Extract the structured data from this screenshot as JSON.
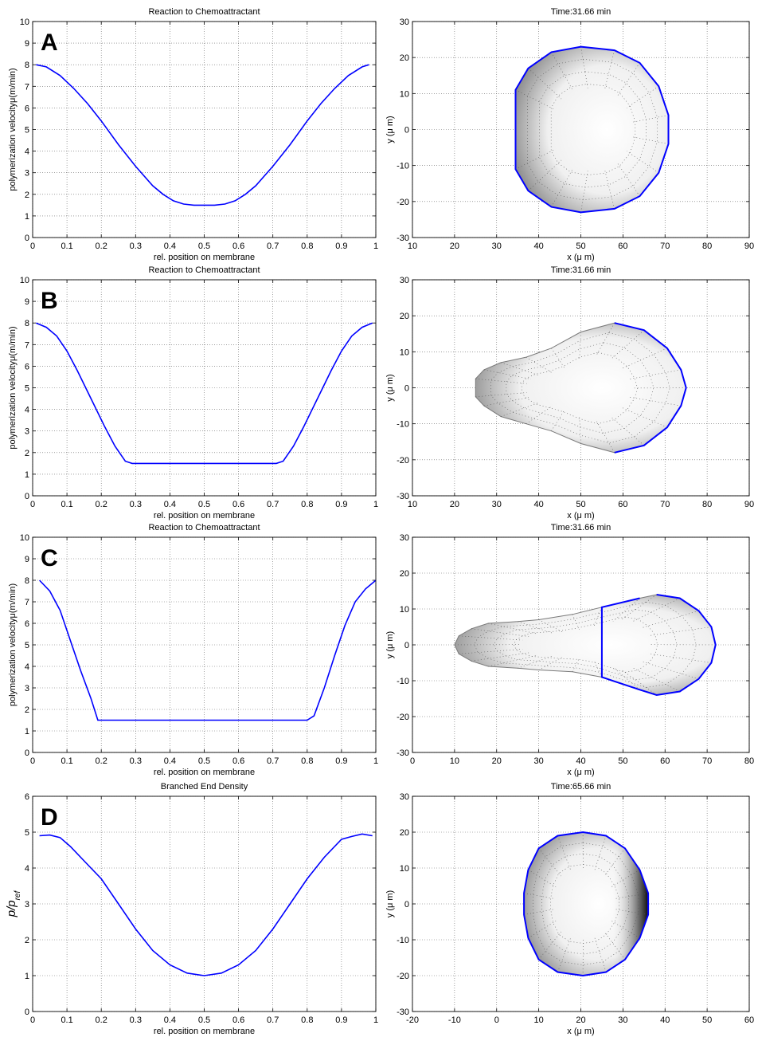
{
  "chart_data": [
    {
      "panel_letter": "A",
      "type": "line",
      "title": "Reaction to Chemoattractant",
      "xlabel": "rel. position on membrane",
      "ylabel": "polymerization velocityμ(m/min)",
      "xlim": [
        0,
        1
      ],
      "ylim": [
        0,
        10
      ],
      "xticks": [
        0,
        0.1,
        0.2,
        0.3,
        0.4,
        0.5,
        0.6,
        0.7,
        0.8,
        0.9,
        1
      ],
      "yticks": [
        0,
        1,
        2,
        3,
        4,
        5,
        6,
        7,
        8,
        9,
        10
      ],
      "grid": true,
      "line_color": "#0000ff",
      "x": [
        0.01,
        0.04,
        0.08,
        0.12,
        0.16,
        0.2,
        0.25,
        0.3,
        0.35,
        0.38,
        0.41,
        0.44,
        0.47,
        0.5,
        0.53,
        0.56,
        0.59,
        0.62,
        0.65,
        0.7,
        0.75,
        0.8,
        0.84,
        0.88,
        0.92,
        0.96,
        0.98
      ],
      "y": [
        8.0,
        7.9,
        7.5,
        6.9,
        6.2,
        5.4,
        4.3,
        3.3,
        2.4,
        2.0,
        1.7,
        1.55,
        1.5,
        1.5,
        1.5,
        1.55,
        1.7,
        2.0,
        2.4,
        3.3,
        4.3,
        5.4,
        6.2,
        6.9,
        7.5,
        7.9,
        8.0
      ]
    },
    {
      "type": "scatter",
      "title": "Time:31.66 min",
      "xlabel": "x (μ m)",
      "ylabel": "y (μ m)",
      "xlim": [
        10,
        90
      ],
      "ylim": [
        -30,
        30
      ],
      "xticks": [
        10,
        20,
        30,
        40,
        50,
        60,
        70,
        80,
        90
      ],
      "yticks": [
        -30,
        -20,
        -10,
        0,
        10,
        20,
        30
      ],
      "grid": true,
      "shape_outline": [
        [
          50,
          23
        ],
        [
          58,
          22
        ],
        [
          64,
          18.5
        ],
        [
          68.5,
          12
        ],
        [
          70.8,
          4
        ],
        [
          70.8,
          -4
        ],
        [
          68.5,
          -12
        ],
        [
          64,
          -18.5
        ],
        [
          58,
          -22
        ],
        [
          50,
          -23
        ],
        [
          43,
          -21.5
        ],
        [
          37.5,
          -17
        ],
        [
          34.5,
          -11
        ],
        [
          34.5,
          11
        ],
        [
          37.5,
          17
        ],
        [
          43,
          21.5
        ]
      ],
      "blue_edge": "all",
      "dark_side": "none"
    },
    {
      "panel_letter": "B",
      "type": "line",
      "title": "Reaction to Chemoattractant",
      "xlabel": "rel. position on membrane",
      "ylabel": "polymerization velocityμ(m/min)",
      "xlim": [
        0,
        1
      ],
      "ylim": [
        0,
        10
      ],
      "xticks": [
        0,
        0.1,
        0.2,
        0.3,
        0.4,
        0.5,
        0.6,
        0.7,
        0.8,
        0.9,
        1
      ],
      "yticks": [
        0,
        1,
        2,
        3,
        4,
        5,
        6,
        7,
        8,
        9,
        10
      ],
      "grid": true,
      "line_color": "#0000ff",
      "x": [
        0.01,
        0.04,
        0.07,
        0.1,
        0.13,
        0.17,
        0.21,
        0.24,
        0.27,
        0.29,
        0.5,
        0.71,
        0.73,
        0.76,
        0.79,
        0.83,
        0.87,
        0.9,
        0.93,
        0.96,
        0.99
      ],
      "y": [
        8.0,
        7.8,
        7.4,
        6.7,
        5.8,
        4.5,
        3.2,
        2.3,
        1.6,
        1.5,
        1.5,
        1.5,
        1.6,
        2.3,
        3.2,
        4.5,
        5.8,
        6.7,
        7.4,
        7.8,
        8.0
      ]
    },
    {
      "type": "scatter",
      "title": "Time:31.66 min",
      "xlabel": "x (μ m)",
      "ylabel": "y (μ m)",
      "xlim": [
        10,
        90
      ],
      "ylim": [
        -30,
        30
      ],
      "xticks": [
        10,
        20,
        30,
        40,
        50,
        60,
        70,
        80,
        90
      ],
      "yticks": [
        -30,
        -20,
        -10,
        0,
        10,
        20,
        30
      ],
      "grid": true,
      "shape_outline": [
        [
          58,
          18
        ],
        [
          65,
          16
        ],
        [
          70.5,
          11
        ],
        [
          73.8,
          5
        ],
        [
          75,
          0
        ],
        [
          73.8,
          -5
        ],
        [
          70.5,
          -11
        ],
        [
          65,
          -16
        ],
        [
          58,
          -18
        ],
        [
          50,
          -15.5
        ],
        [
          43,
          -12
        ],
        [
          37,
          -10
        ],
        [
          31,
          -8
        ],
        [
          27,
          -5
        ],
        [
          25,
          -2.5
        ],
        [
          25,
          2.5
        ],
        [
          27,
          5
        ],
        [
          31,
          7
        ],
        [
          37,
          8.5
        ],
        [
          43,
          11
        ],
        [
          50,
          15.5
        ]
      ],
      "blue_edge": "front",
      "dark_side": "none"
    },
    {
      "panel_letter": "C",
      "type": "line",
      "title": "Reaction to Chemoattractant",
      "xlabel": "rel. position on membrane",
      "ylabel": "polymerization velocityμ(m/min)",
      "xlim": [
        0,
        1
      ],
      "ylim": [
        0,
        10
      ],
      "xticks": [
        0,
        0.1,
        0.2,
        0.3,
        0.4,
        0.5,
        0.6,
        0.7,
        0.8,
        0.9,
        1
      ],
      "yticks": [
        0,
        1,
        2,
        3,
        4,
        5,
        6,
        7,
        8,
        9,
        10
      ],
      "grid": true,
      "line_color": "#0000ff",
      "x": [
        0.02,
        0.05,
        0.08,
        0.11,
        0.14,
        0.17,
        0.19,
        0.5,
        0.8,
        0.82,
        0.85,
        0.88,
        0.91,
        0.94,
        0.97,
        1.0
      ],
      "y": [
        8.0,
        7.5,
        6.6,
        5.2,
        3.8,
        2.5,
        1.5,
        1.5,
        1.5,
        1.7,
        3.0,
        4.5,
        5.9,
        7.0,
        7.6,
        8.0
      ]
    },
    {
      "type": "scatter",
      "title": "Time:31.66 min",
      "xlabel": "x (μ m)",
      "ylabel": "y (μ m)",
      "xlim": [
        0,
        80
      ],
      "ylim": [
        -30,
        30
      ],
      "xticks": [
        0,
        10,
        20,
        30,
        40,
        50,
        60,
        70,
        80
      ],
      "yticks": [
        -30,
        -20,
        -10,
        0,
        10,
        20,
        30
      ],
      "grid": true,
      "shape_outline": [
        [
          58,
          14
        ],
        [
          63.5,
          13
        ],
        [
          68,
          9.5
        ],
        [
          71,
          5
        ],
        [
          72,
          0
        ],
        [
          71,
          -5
        ],
        [
          68,
          -9.5
        ],
        [
          63.5,
          -13
        ],
        [
          58,
          -14
        ],
        [
          54,
          -12.5
        ],
        [
          45,
          -9
        ],
        [
          38,
          -7.5
        ],
        [
          30,
          -7
        ],
        [
          25,
          -6.5
        ],
        [
          18,
          -6
        ],
        [
          14,
          -4.5
        ],
        [
          11,
          -2.5
        ],
        [
          10,
          0
        ],
        [
          11,
          2.5
        ],
        [
          14,
          4.5
        ],
        [
          18,
          6
        ],
        [
          25,
          6.5
        ],
        [
          30,
          7
        ],
        [
          38,
          8.5
        ],
        [
          45,
          10.5
        ],
        [
          54,
          13
        ]
      ],
      "blue_edge": "front",
      "dark_side": "none"
    },
    {
      "panel_letter": "D",
      "type": "line",
      "title": "Branched End Density",
      "xlabel": "rel. position on membrane",
      "ylabel": "p/p_ref",
      "xlim": [
        0,
        1
      ],
      "ylim": [
        0,
        6
      ],
      "xticks": [
        0,
        0.1,
        0.2,
        0.3,
        0.4,
        0.5,
        0.6,
        0.7,
        0.8,
        0.9,
        1
      ],
      "yticks": [
        0,
        1,
        2,
        3,
        4,
        5,
        6
      ],
      "grid": true,
      "line_color": "#0000ff",
      "x": [
        0.02,
        0.05,
        0.08,
        0.11,
        0.15,
        0.2,
        0.25,
        0.3,
        0.35,
        0.4,
        0.45,
        0.5,
        0.55,
        0.6,
        0.65,
        0.7,
        0.75,
        0.8,
        0.85,
        0.9,
        0.93,
        0.96,
        0.99
      ],
      "y": [
        4.9,
        4.92,
        4.85,
        4.6,
        4.2,
        3.7,
        3.0,
        2.3,
        1.7,
        1.3,
        1.07,
        1.0,
        1.07,
        1.3,
        1.7,
        2.3,
        3.0,
        3.7,
        4.3,
        4.8,
        4.88,
        4.95,
        4.9
      ]
    },
    {
      "type": "scatter",
      "title": "Time:65.66 min",
      "xlabel": "x (μ m)",
      "ylabel": "y (μ m)",
      "xlim": [
        -20,
        60
      ],
      "ylim": [
        -30,
        30
      ],
      "xticks": [
        -20,
        -10,
        0,
        10,
        20,
        30,
        40,
        50,
        60
      ],
      "yticks": [
        -30,
        -20,
        -10,
        0,
        10,
        20,
        30
      ],
      "grid": true,
      "shape_outline": [
        [
          20.5,
          20
        ],
        [
          26,
          19
        ],
        [
          30.5,
          15.5
        ],
        [
          34,
          9.5
        ],
        [
          36,
          3
        ],
        [
          36,
          -3
        ],
        [
          34,
          -9.5
        ],
        [
          30.5,
          -15.5
        ],
        [
          26,
          -19
        ],
        [
          20.5,
          -20
        ],
        [
          14.5,
          -19
        ],
        [
          10,
          -15.5
        ],
        [
          7.5,
          -9.5
        ],
        [
          6.5,
          -3
        ],
        [
          6.5,
          3
        ],
        [
          7.5,
          9.5
        ],
        [
          10,
          15.5
        ],
        [
          14.5,
          19
        ]
      ],
      "blue_edge": "all",
      "dark_side": "right"
    }
  ]
}
